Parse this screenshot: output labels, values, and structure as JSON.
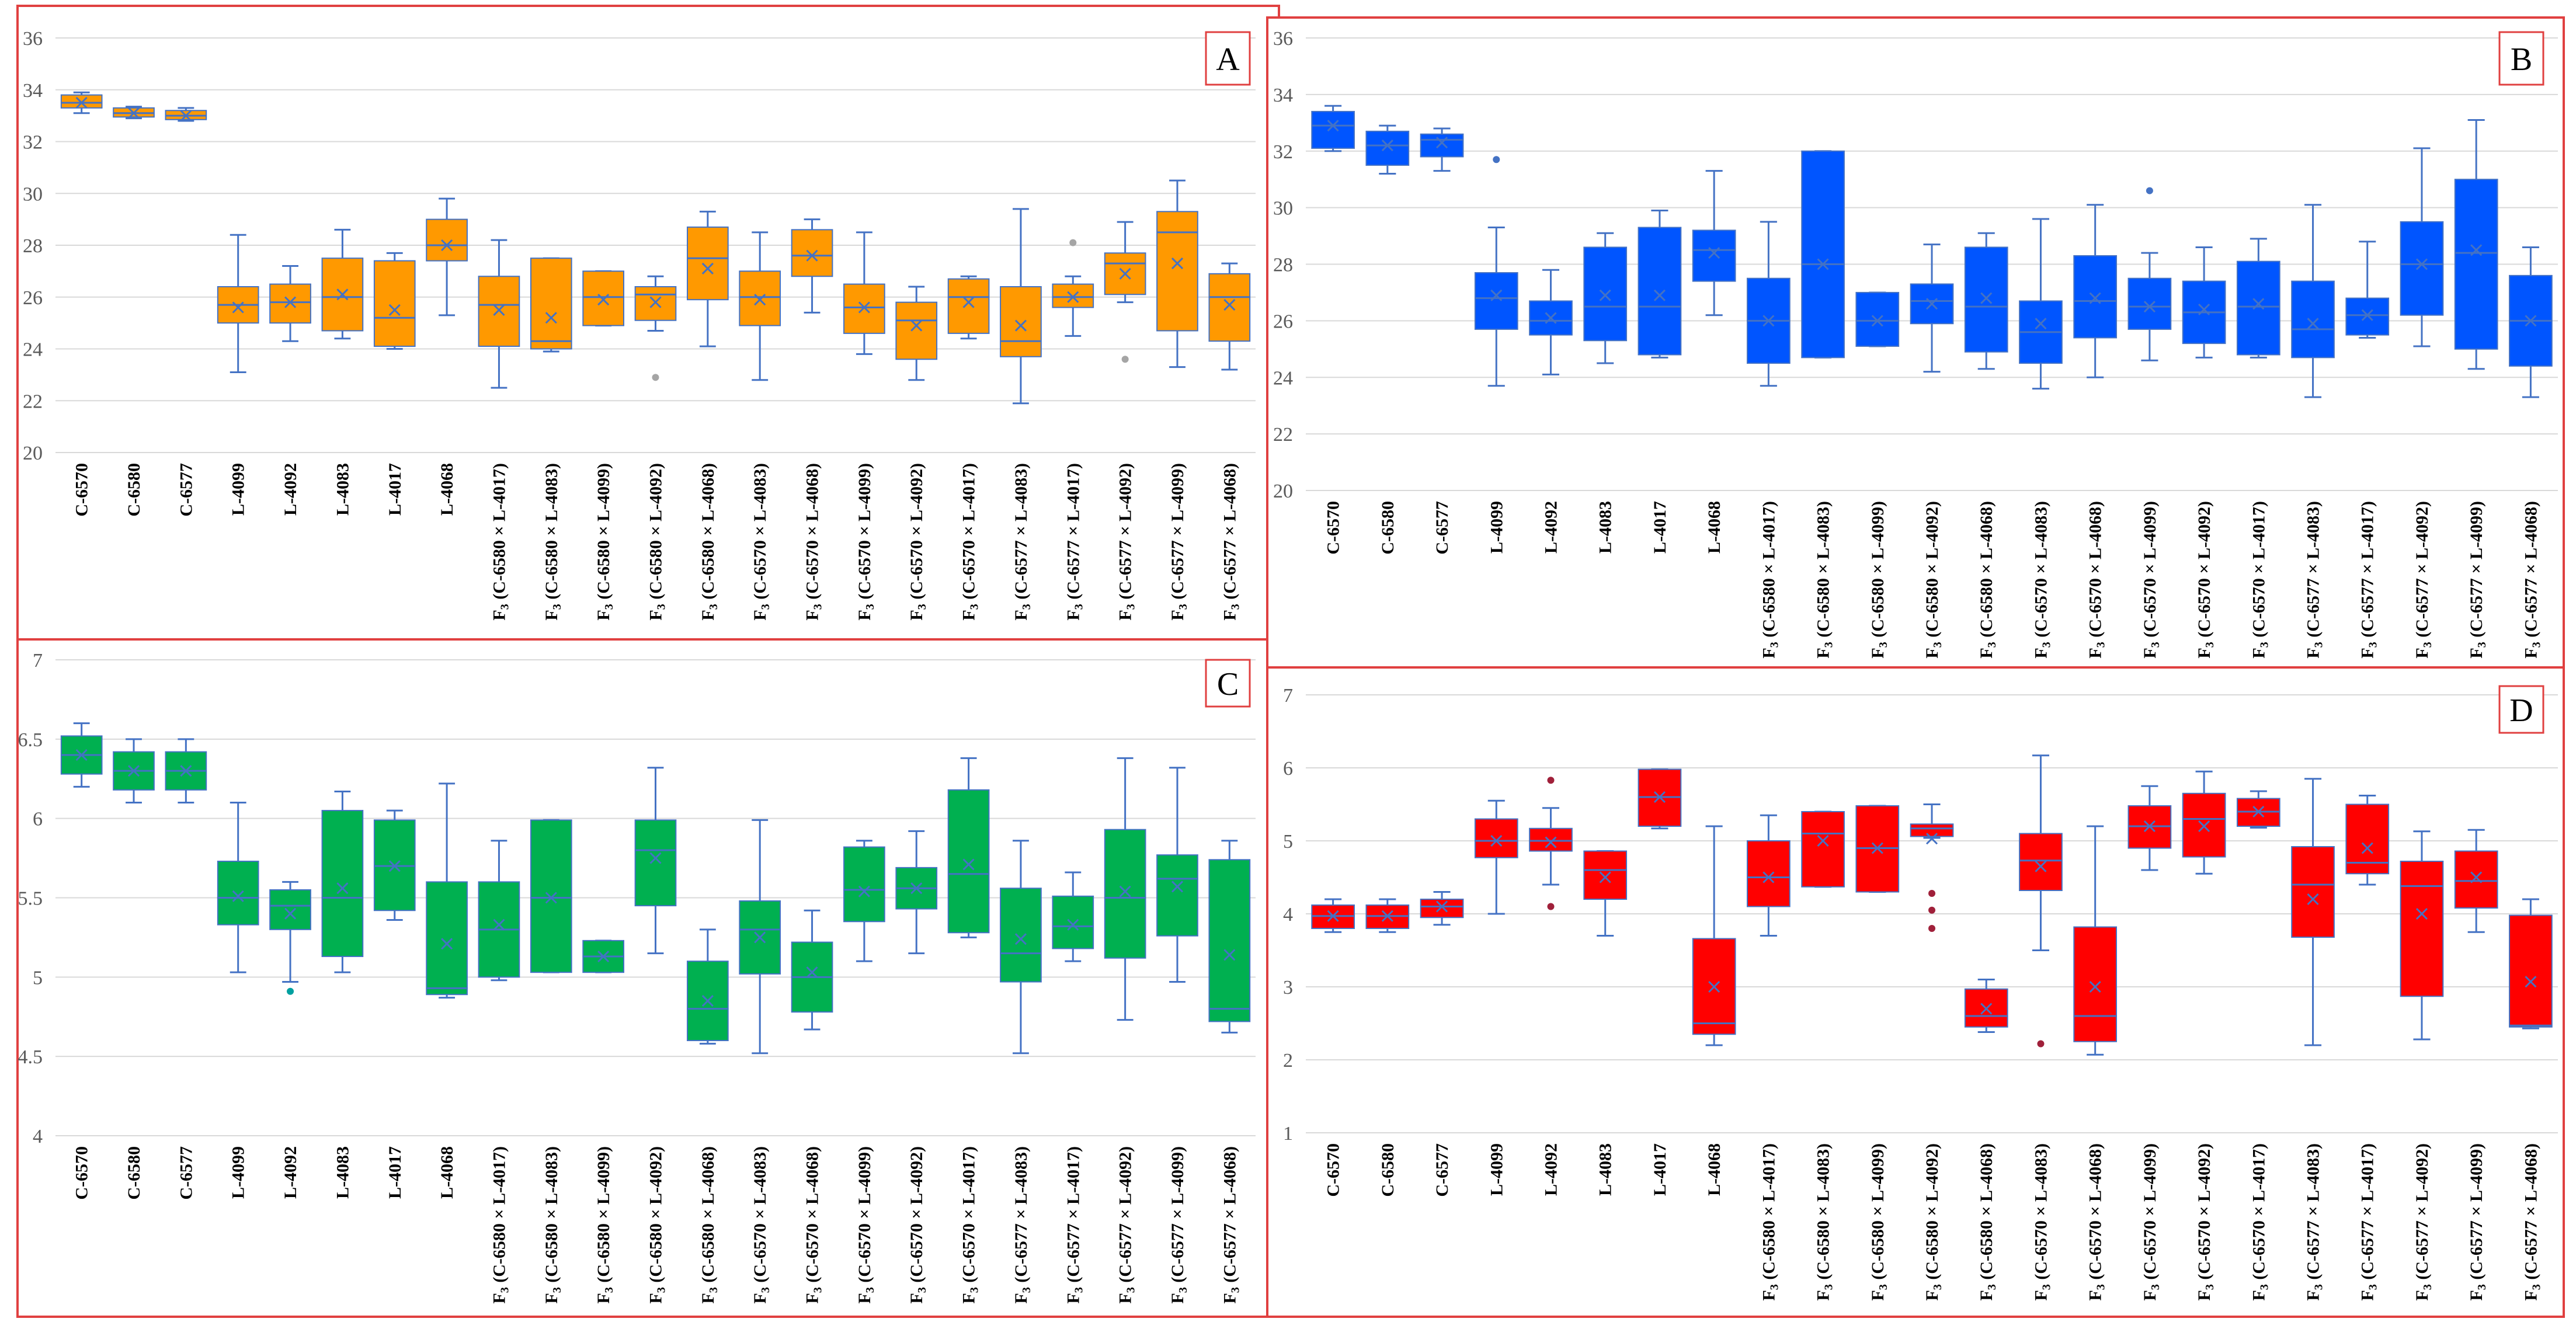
{
  "categories": [
    "C-6570",
    "C-6580",
    "C-6577",
    "L-4099",
    "L-4092",
    "L-4083",
    "L-4017",
    "L-4068",
    "F3 (C-6580 × L-4017)",
    "F3 (C-6580 × L-4083)",
    "F3 (C-6580 × L-4099)",
    "F3 (C-6580 × L-4092)",
    "F3 (C-6580 × L-4068)",
    "F3 (C-6570 × L-4083)",
    "F3 (C-6570 × L-4068)",
    "F3 (C-6570 × L-4099)",
    "F3 (C-6570 × L-4092)",
    "F3 (C-6570 × L-4017)",
    "F3 (C-6577 × L-4083)",
    "F3 (C-6577 × L-4017)",
    "F3 (C-6577 × L-4092)",
    "F3 (C-6577 × L-4099)",
    "F3 (C-6577 × L-4068)"
  ],
  "colors": {
    "A": "#ff9900",
    "B": "#0055ff",
    "C": "#00b050",
    "D": "#ff0000",
    "border": "#e04040",
    "axis": "#595959",
    "grid": "#d9d9d9",
    "whisker": "#4472c4"
  },
  "chart_data": [
    {
      "panel": "A",
      "type": "boxplot",
      "ylim": [
        20,
        36
      ],
      "yticks": [
        20,
        22,
        24,
        26,
        28,
        30,
        32,
        34,
        36
      ],
      "grid": true,
      "color": "#ff9900",
      "series": [
        {
          "min": 33.1,
          "q1": 33.3,
          "median": 33.5,
          "q3": 33.8,
          "max": 33.9,
          "mean": 33.5,
          "outliers": []
        },
        {
          "min": 32.9,
          "q1": 32.95,
          "median": 33.1,
          "q3": 33.3,
          "max": 33.35,
          "mean": 33.1,
          "outliers": []
        },
        {
          "min": 32.8,
          "q1": 32.85,
          "median": 33.0,
          "q3": 33.2,
          "max": 33.3,
          "mean": 33.0,
          "outliers": []
        },
        {
          "min": 23.1,
          "q1": 25.0,
          "median": 25.7,
          "q3": 26.4,
          "max": 28.4,
          "mean": 25.6,
          "outliers": []
        },
        {
          "min": 24.3,
          "q1": 25.0,
          "median": 25.8,
          "q3": 26.5,
          "max": 27.2,
          "mean": 25.8,
          "outliers": []
        },
        {
          "min": 24.4,
          "q1": 24.7,
          "median": 26.0,
          "q3": 27.5,
          "max": 28.6,
          "mean": 26.1,
          "outliers": []
        },
        {
          "min": 24.0,
          "q1": 24.1,
          "median": 25.2,
          "q3": 27.4,
          "max": 27.7,
          "mean": 25.5,
          "outliers": []
        },
        {
          "min": 25.3,
          "q1": 27.4,
          "median": 28.0,
          "q3": 29.0,
          "max": 29.8,
          "mean": 28.0,
          "outliers": []
        },
        {
          "min": 22.5,
          "q1": 24.1,
          "median": 25.7,
          "q3": 26.8,
          "max": 28.2,
          "mean": 25.5,
          "outliers": []
        },
        {
          "min": 23.9,
          "q1": 24.0,
          "median": 24.3,
          "q3": 27.5,
          "max": 27.5,
          "mean": 25.2,
          "outliers": []
        },
        {
          "min": 24.9,
          "q1": 24.9,
          "median": 26.0,
          "q3": 27.0,
          "max": 27.0,
          "mean": 25.9,
          "outliers": []
        },
        {
          "min": 24.7,
          "q1": 25.1,
          "median": 26.1,
          "q3": 26.4,
          "max": 26.8,
          "mean": 25.8,
          "outliers": [
            22.9
          ]
        },
        {
          "min": 24.1,
          "q1": 25.9,
          "median": 27.5,
          "q3": 28.7,
          "max": 29.3,
          "mean": 27.1,
          "outliers": []
        },
        {
          "min": 22.8,
          "q1": 24.9,
          "median": 26.0,
          "q3": 27.0,
          "max": 28.5,
          "mean": 25.9,
          "outliers": []
        },
        {
          "min": 25.4,
          "q1": 26.8,
          "median": 27.6,
          "q3": 28.6,
          "max": 29.0,
          "mean": 27.6,
          "outliers": []
        },
        {
          "min": 23.8,
          "q1": 24.6,
          "median": 25.6,
          "q3": 26.5,
          "max": 28.5,
          "mean": 25.6,
          "outliers": []
        },
        {
          "min": 22.8,
          "q1": 23.6,
          "median": 25.1,
          "q3": 25.8,
          "max": 26.4,
          "mean": 24.9,
          "outliers": []
        },
        {
          "min": 24.4,
          "q1": 24.6,
          "median": 26.0,
          "q3": 26.7,
          "max": 26.8,
          "mean": 25.8,
          "outliers": []
        },
        {
          "min": 21.9,
          "q1": 23.7,
          "median": 24.3,
          "q3": 26.4,
          "max": 29.4,
          "mean": 24.9,
          "outliers": []
        },
        {
          "min": 24.5,
          "q1": 25.6,
          "median": 26.0,
          "q3": 26.5,
          "max": 26.8,
          "mean": 26.0,
          "outliers": [
            28.1
          ]
        },
        {
          "min": 25.8,
          "q1": 26.1,
          "median": 27.3,
          "q3": 27.7,
          "max": 28.9,
          "mean": 26.9,
          "outliers": [
            23.6
          ]
        },
        {
          "min": 23.3,
          "q1": 24.7,
          "median": 28.5,
          "q3": 29.3,
          "max": 30.5,
          "mean": 27.3,
          "outliers": []
        },
        {
          "min": 23.2,
          "q1": 24.3,
          "median": 26.0,
          "q3": 26.9,
          "max": 27.3,
          "mean": 25.7,
          "outliers": []
        }
      ]
    },
    {
      "panel": "B",
      "type": "boxplot",
      "ylim": [
        20,
        36
      ],
      "yticks": [
        20,
        22,
        24,
        26,
        28,
        30,
        32,
        34,
        36
      ],
      "grid": true,
      "color": "#0055ff",
      "series": [
        {
          "min": 32.0,
          "q1": 32.1,
          "median": 32.9,
          "q3": 33.4,
          "max": 33.6,
          "mean": 32.9,
          "outliers": []
        },
        {
          "min": 31.2,
          "q1": 31.5,
          "median": 32.2,
          "q3": 32.7,
          "max": 32.9,
          "mean": 32.2,
          "outliers": []
        },
        {
          "min": 31.3,
          "q1": 31.8,
          "median": 32.4,
          "q3": 32.6,
          "max": 32.8,
          "mean": 32.3,
          "outliers": []
        },
        {
          "min": 23.7,
          "q1": 25.7,
          "median": 26.8,
          "q3": 27.7,
          "max": 29.3,
          "mean": 26.9,
          "outliers": [
            31.7
          ]
        },
        {
          "min": 24.1,
          "q1": 25.5,
          "median": 26.0,
          "q3": 26.7,
          "max": 27.8,
          "mean": 26.1,
          "outliers": []
        },
        {
          "min": 24.5,
          "q1": 25.3,
          "median": 26.5,
          "q3": 28.6,
          "max": 29.1,
          "mean": 26.9,
          "outliers": []
        },
        {
          "min": 24.7,
          "q1": 24.8,
          "median": 26.5,
          "q3": 29.3,
          "max": 29.9,
          "mean": 26.9,
          "outliers": []
        },
        {
          "min": 26.2,
          "q1": 27.4,
          "median": 28.5,
          "q3": 29.2,
          "max": 31.3,
          "mean": 28.4,
          "outliers": []
        },
        {
          "min": 23.7,
          "q1": 24.5,
          "median": 26.0,
          "q3": 27.5,
          "max": 29.5,
          "mean": 26.0,
          "outliers": []
        },
        {
          "min": 24.7,
          "q1": 24.7,
          "median": 28.0,
          "q3": 32.0,
          "max": 32.0,
          "mean": 28.0,
          "outliers": []
        },
        {
          "min": 25.1,
          "q1": 25.1,
          "median": 26.0,
          "q3": 27.0,
          "max": 27.0,
          "mean": 26.0,
          "outliers": []
        },
        {
          "min": 24.2,
          "q1": 25.9,
          "median": 26.7,
          "q3": 27.3,
          "max": 28.7,
          "mean": 26.6,
          "outliers": []
        },
        {
          "min": 24.3,
          "q1": 24.9,
          "median": 26.5,
          "q3": 28.6,
          "max": 29.1,
          "mean": 26.8,
          "outliers": []
        },
        {
          "min": 23.6,
          "q1": 24.5,
          "median": 25.6,
          "q3": 26.7,
          "max": 29.6,
          "mean": 25.9,
          "outliers": []
        },
        {
          "min": 24.0,
          "q1": 25.4,
          "median": 26.7,
          "q3": 28.3,
          "max": 30.1,
          "mean": 26.8,
          "outliers": []
        },
        {
          "min": 24.6,
          "q1": 25.7,
          "median": 26.5,
          "q3": 27.5,
          "max": 28.4,
          "mean": 26.5,
          "outliers": [
            30.6
          ]
        },
        {
          "min": 24.7,
          "q1": 25.2,
          "median": 26.3,
          "q3": 27.4,
          "max": 28.6,
          "mean": 26.4,
          "outliers": []
        },
        {
          "min": 24.7,
          "q1": 24.8,
          "median": 26.5,
          "q3": 28.1,
          "max": 28.9,
          "mean": 26.6,
          "outliers": []
        },
        {
          "min": 23.3,
          "q1": 24.7,
          "median": 25.7,
          "q3": 27.4,
          "max": 30.1,
          "mean": 25.9,
          "outliers": []
        },
        {
          "min": 25.4,
          "q1": 25.5,
          "median": 26.2,
          "q3": 26.8,
          "max": 28.8,
          "mean": 26.2,
          "outliers": []
        },
        {
          "min": 25.1,
          "q1": 26.2,
          "median": 28.0,
          "q3": 29.5,
          "max": 32.1,
          "mean": 28.0,
          "outliers": []
        },
        {
          "min": 24.3,
          "q1": 25.0,
          "median": 28.4,
          "q3": 31.0,
          "max": 33.1,
          "mean": 28.5,
          "outliers": []
        },
        {
          "min": 23.3,
          "q1": 24.4,
          "median": 26.0,
          "q3": 27.6,
          "max": 28.6,
          "mean": 26.0,
          "outliers": []
        }
      ]
    },
    {
      "panel": "C",
      "type": "boxplot",
      "ylim": [
        4,
        7
      ],
      "yticks": [
        4,
        4.5,
        5,
        5.5,
        6,
        6.5,
        7
      ],
      "grid": true,
      "color": "#00b050",
      "series": [
        {
          "min": 6.2,
          "q1": 6.28,
          "median": 6.4,
          "q3": 6.52,
          "max": 6.6,
          "mean": 6.4,
          "outliers": []
        },
        {
          "min": 6.1,
          "q1": 6.18,
          "median": 6.3,
          "q3": 6.42,
          "max": 6.5,
          "mean": 6.3,
          "outliers": []
        },
        {
          "min": 6.1,
          "q1": 6.18,
          "median": 6.3,
          "q3": 6.42,
          "max": 6.5,
          "mean": 6.3,
          "outliers": []
        },
        {
          "min": 5.03,
          "q1": 5.33,
          "median": 5.5,
          "q3": 5.73,
          "max": 6.1,
          "mean": 5.51,
          "outliers": []
        },
        {
          "min": 4.97,
          "q1": 5.3,
          "median": 5.45,
          "q3": 5.55,
          "max": 5.6,
          "mean": 5.4,
          "outliers": [
            4.91
          ]
        },
        {
          "min": 5.03,
          "q1": 5.13,
          "median": 5.5,
          "q3": 6.05,
          "max": 6.17,
          "mean": 5.56,
          "outliers": []
        },
        {
          "min": 5.36,
          "q1": 5.42,
          "median": 5.7,
          "q3": 5.99,
          "max": 6.05,
          "mean": 5.7,
          "outliers": []
        },
        {
          "min": 4.87,
          "q1": 4.89,
          "median": 4.93,
          "q3": 5.6,
          "max": 6.22,
          "mean": 5.21,
          "outliers": []
        },
        {
          "min": 4.98,
          "q1": 5.0,
          "median": 5.3,
          "q3": 5.6,
          "max": 5.86,
          "mean": 5.33,
          "outliers": []
        },
        {
          "min": 5.03,
          "q1": 5.03,
          "median": 5.5,
          "q3": 5.99,
          "max": 5.99,
          "mean": 5.5,
          "outliers": []
        },
        {
          "min": 5.03,
          "q1": 5.03,
          "median": 5.13,
          "q3": 5.23,
          "max": 5.23,
          "mean": 5.13,
          "outliers": []
        },
        {
          "min": 5.15,
          "q1": 5.45,
          "median": 5.8,
          "q3": 5.99,
          "max": 6.32,
          "mean": 5.75,
          "outliers": []
        },
        {
          "min": 4.58,
          "q1": 4.6,
          "median": 4.8,
          "q3": 5.1,
          "max": 5.3,
          "mean": 4.85,
          "outliers": []
        },
        {
          "min": 4.52,
          "q1": 5.02,
          "median": 5.3,
          "q3": 5.48,
          "max": 5.99,
          "mean": 5.25,
          "outliers": []
        },
        {
          "min": 4.67,
          "q1": 4.78,
          "median": 5.0,
          "q3": 5.22,
          "max": 5.42,
          "mean": 5.03,
          "outliers": []
        },
        {
          "min": 5.1,
          "q1": 5.35,
          "median": 5.55,
          "q3": 5.82,
          "max": 5.86,
          "mean": 5.54,
          "outliers": []
        },
        {
          "min": 5.15,
          "q1": 5.43,
          "median": 5.56,
          "q3": 5.69,
          "max": 5.92,
          "mean": 5.56,
          "outliers": []
        },
        {
          "min": 5.25,
          "q1": 5.28,
          "median": 5.65,
          "q3": 6.18,
          "max": 6.38,
          "mean": 5.71,
          "outliers": []
        },
        {
          "min": 4.52,
          "q1": 4.97,
          "median": 5.15,
          "q3": 5.56,
          "max": 5.86,
          "mean": 5.24,
          "outliers": []
        },
        {
          "min": 5.1,
          "q1": 5.18,
          "median": 5.32,
          "q3": 5.51,
          "max": 5.66,
          "mean": 5.33,
          "outliers": []
        },
        {
          "min": 4.73,
          "q1": 5.12,
          "median": 5.5,
          "q3": 5.93,
          "max": 6.38,
          "mean": 5.54,
          "outliers": []
        },
        {
          "min": 4.97,
          "q1": 5.26,
          "median": 5.62,
          "q3": 5.77,
          "max": 6.32,
          "mean": 5.57,
          "outliers": []
        },
        {
          "min": 4.65,
          "q1": 4.72,
          "median": 4.8,
          "q3": 5.74,
          "max": 5.86,
          "mean": 5.14,
          "outliers": []
        }
      ]
    },
    {
      "panel": "D",
      "type": "boxplot",
      "ylim": [
        1,
        7
      ],
      "yticks": [
        1,
        2,
        3,
        4,
        5,
        6,
        7
      ],
      "grid": true,
      "color": "#ff0000",
      "series": [
        {
          "min": 3.75,
          "q1": 3.8,
          "median": 3.97,
          "q3": 4.12,
          "max": 4.2,
          "mean": 3.97,
          "outliers": []
        },
        {
          "min": 3.75,
          "q1": 3.8,
          "median": 3.97,
          "q3": 4.12,
          "max": 4.2,
          "mean": 3.97,
          "outliers": []
        },
        {
          "min": 3.85,
          "q1": 3.95,
          "median": 4.1,
          "q3": 4.2,
          "max": 4.3,
          "mean": 4.1,
          "outliers": []
        },
        {
          "min": 4.0,
          "q1": 4.77,
          "median": 5.0,
          "q3": 5.3,
          "max": 5.55,
          "mean": 5.0,
          "outliers": []
        },
        {
          "min": 4.4,
          "q1": 4.86,
          "median": 5.0,
          "q3": 5.17,
          "max": 5.45,
          "mean": 4.98,
          "outliers": [
            5.83,
            4.1
          ]
        },
        {
          "min": 3.7,
          "q1": 4.2,
          "median": 4.6,
          "q3": 4.86,
          "max": 4.86,
          "mean": 4.5,
          "outliers": []
        },
        {
          "min": 5.17,
          "q1": 5.2,
          "median": 5.6,
          "q3": 5.98,
          "max": 5.98,
          "mean": 5.6,
          "outliers": []
        },
        {
          "min": 2.2,
          "q1": 2.35,
          "median": 2.5,
          "q3": 3.66,
          "max": 5.2,
          "mean": 3.0,
          "outliers": []
        },
        {
          "min": 3.7,
          "q1": 4.1,
          "median": 4.5,
          "q3": 5.0,
          "max": 5.35,
          "mean": 4.5,
          "outliers": []
        },
        {
          "min": 4.37,
          "q1": 4.37,
          "median": 5.1,
          "q3": 5.4,
          "max": 5.4,
          "mean": 5.0,
          "outliers": []
        },
        {
          "min": 4.3,
          "q1": 4.3,
          "median": 4.9,
          "q3": 5.48,
          "max": 5.48,
          "mean": 4.9,
          "outliers": []
        },
        {
          "min": 5.04,
          "q1": 5.06,
          "median": 5.17,
          "q3": 5.23,
          "max": 5.5,
          "mean": 5.03,
          "outliers": [
            4.28,
            4.05,
            3.8
          ]
        },
        {
          "min": 2.38,
          "q1": 2.45,
          "median": 2.6,
          "q3": 2.97,
          "max": 3.1,
          "mean": 2.7,
          "outliers": []
        },
        {
          "min": 3.5,
          "q1": 4.32,
          "median": 4.73,
          "q3": 5.1,
          "max": 6.17,
          "mean": 4.65,
          "outliers": [
            2.22
          ]
        },
        {
          "min": 2.07,
          "q1": 2.25,
          "median": 2.6,
          "q3": 3.82,
          "max": 5.2,
          "mean": 3.0,
          "outliers": []
        },
        {
          "min": 4.6,
          "q1": 4.9,
          "median": 5.2,
          "q3": 5.48,
          "max": 5.75,
          "mean": 5.2,
          "outliers": []
        },
        {
          "min": 4.55,
          "q1": 4.78,
          "median": 5.3,
          "q3": 5.65,
          "max": 5.95,
          "mean": 5.2,
          "outliers": []
        },
        {
          "min": 5.18,
          "q1": 5.2,
          "median": 5.4,
          "q3": 5.58,
          "max": 5.68,
          "mean": 5.4,
          "outliers": []
        },
        {
          "min": 2.2,
          "q1": 3.68,
          "median": 4.4,
          "q3": 4.92,
          "max": 5.85,
          "mean": 4.2,
          "outliers": []
        },
        {
          "min": 4.4,
          "q1": 4.55,
          "median": 4.7,
          "q3": 5.5,
          "max": 5.62,
          "mean": 4.9,
          "outliers": []
        },
        {
          "min": 2.28,
          "q1": 2.87,
          "median": 4.38,
          "q3": 4.72,
          "max": 5.13,
          "mean": 4.0,
          "outliers": []
        },
        {
          "min": 3.75,
          "q1": 4.08,
          "median": 4.45,
          "q3": 4.86,
          "max": 5.15,
          "mean": 4.5,
          "outliers": []
        },
        {
          "min": 2.43,
          "q1": 2.45,
          "median": 2.47,
          "q3": 3.98,
          "max": 4.2,
          "mean": 3.07,
          "outliers": []
        }
      ]
    }
  ]
}
